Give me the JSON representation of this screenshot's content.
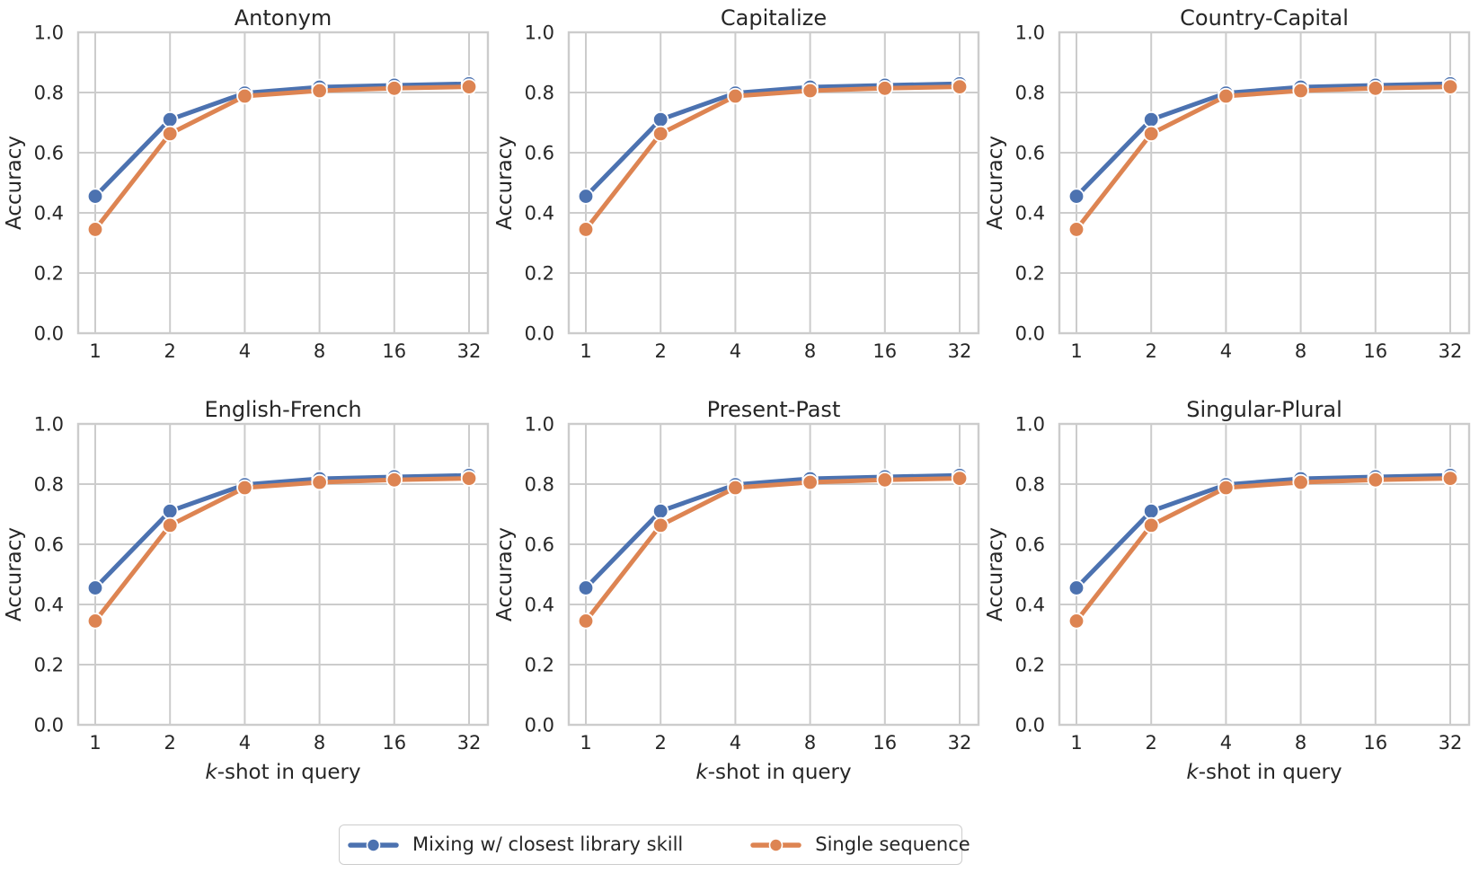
{
  "chart_data": {
    "type": "line",
    "layout": {
      "rows": 2,
      "cols": 3,
      "grid": true,
      "legend_position": "lower center"
    },
    "x": [
      1,
      2,
      4,
      8,
      16,
      32
    ],
    "xscale": "log2",
    "x_tick_labels": [
      "1",
      "2",
      "4",
      "8",
      "16",
      "32"
    ],
    "xlabel_italic_prefix": "k",
    "xlabel_suffix": "-shot in query",
    "xlabel_full": "k-shot in query",
    "ylabel": "Accuracy",
    "ylim": [
      0.0,
      1.0
    ],
    "y_ticks": [
      0.0,
      0.2,
      0.4,
      0.6,
      0.8,
      1.0
    ],
    "y_tick_labels": [
      "0.0",
      "0.2",
      "0.4",
      "0.6",
      "0.8",
      "1.0"
    ],
    "subplots": [
      {
        "title": "Antonym",
        "series": [
          {
            "name": "Mixing w/ closest library skill",
            "color": "#4C72B0",
            "values": [
              0.455,
              0.71,
              0.798,
              0.818,
              0.824,
              0.829
            ]
          },
          {
            "name": "Single sequence",
            "color": "#DD8452",
            "values": [
              0.345,
              0.663,
              0.788,
              0.806,
              0.814,
              0.819
            ]
          }
        ]
      },
      {
        "title": "Capitalize",
        "series": [
          {
            "name": "Mixing w/ closest library skill",
            "color": "#4C72B0",
            "values": [
              0.455,
              0.71,
              0.798,
              0.818,
              0.824,
              0.829
            ]
          },
          {
            "name": "Single sequence",
            "color": "#DD8452",
            "values": [
              0.345,
              0.663,
              0.788,
              0.806,
              0.814,
              0.819
            ]
          }
        ]
      },
      {
        "title": "Country-Capital",
        "series": [
          {
            "name": "Mixing w/ closest library skill",
            "color": "#4C72B0",
            "values": [
              0.455,
              0.71,
              0.798,
              0.818,
              0.824,
              0.829
            ]
          },
          {
            "name": "Single sequence",
            "color": "#DD8452",
            "values": [
              0.345,
              0.663,
              0.788,
              0.806,
              0.814,
              0.819
            ]
          }
        ]
      },
      {
        "title": "English-French",
        "series": [
          {
            "name": "Mixing w/ closest library skill",
            "color": "#4C72B0",
            "values": [
              0.455,
              0.71,
              0.798,
              0.818,
              0.824,
              0.829
            ]
          },
          {
            "name": "Single sequence",
            "color": "#DD8452",
            "values": [
              0.345,
              0.663,
              0.788,
              0.806,
              0.814,
              0.819
            ]
          }
        ]
      },
      {
        "title": "Present-Past",
        "series": [
          {
            "name": "Mixing w/ closest library skill",
            "color": "#4C72B0",
            "values": [
              0.455,
              0.71,
              0.798,
              0.818,
              0.824,
              0.829
            ]
          },
          {
            "name": "Single sequence",
            "color": "#DD8452",
            "values": [
              0.345,
              0.663,
              0.788,
              0.806,
              0.814,
              0.819
            ]
          }
        ]
      },
      {
        "title": "Singular-Plural",
        "series": [
          {
            "name": "Mixing w/ closest library skill",
            "color": "#4C72B0",
            "values": [
              0.455,
              0.71,
              0.798,
              0.818,
              0.824,
              0.829
            ]
          },
          {
            "name": "Single sequence",
            "color": "#DD8452",
            "values": [
              0.345,
              0.663,
              0.788,
              0.806,
              0.814,
              0.819
            ]
          }
        ]
      }
    ]
  },
  "legend": {
    "entries": [
      {
        "label": "Mixing w/ closest library skill",
        "color": "#4C72B0"
      },
      {
        "label": "Single sequence",
        "color": "#DD8452"
      }
    ]
  },
  "style": {
    "blue": "#4C72B0",
    "orange": "#DD8452",
    "grid_color": "#cccccc",
    "spine_color": "#cccccc",
    "text_color": "#262626",
    "marker_edge": "#ffffff"
  }
}
